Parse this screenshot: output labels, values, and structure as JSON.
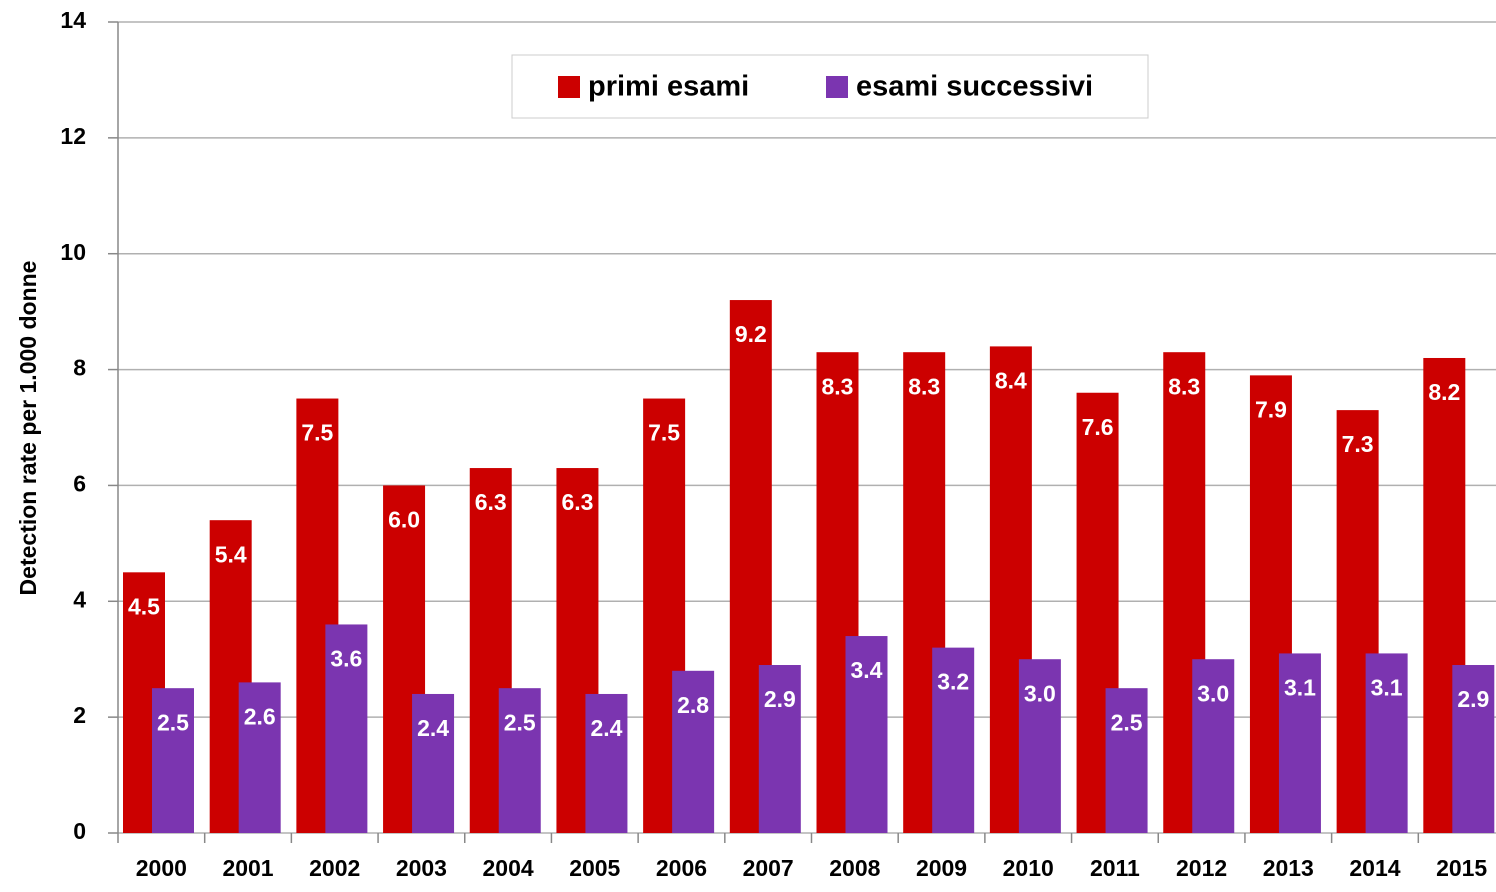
{
  "chart_data": {
    "type": "bar",
    "y_label": "Detection rate per 1.000 donne",
    "categories": [
      "2000",
      "2001",
      "2002",
      "2003",
      "2004",
      "2005",
      "2006",
      "2007",
      "2008",
      "2009",
      "2010",
      "2011",
      "2012",
      "2013",
      "2014",
      "2015"
    ],
    "series": [
      {
        "name": "primi esami",
        "color": "#cc0000",
        "values": [
          4.5,
          5.4,
          7.5,
          6.0,
          6.3,
          6.3,
          7.5,
          9.2,
          8.3,
          8.3,
          8.4,
          7.6,
          8.3,
          7.9,
          7.3,
          8.2
        ],
        "value_labels": [
          "4.5",
          "5.4",
          "7.5",
          "6.0",
          "6.3",
          "6.3",
          "7.5",
          "9.2",
          "8.3",
          "8.3",
          "8.4",
          "7.6",
          "8.3",
          "7.9",
          "7.3",
          "8.2"
        ]
      },
      {
        "name": "esami successivi",
        "color": "#7b35b0",
        "values": [
          2.5,
          2.6,
          3.6,
          2.4,
          2.5,
          2.4,
          2.8,
          2.9,
          3.4,
          3.2,
          3.0,
          2.5,
          3.0,
          3.1,
          3.1,
          2.9
        ],
        "value_labels": [
          "2.5",
          "2.6",
          "3.6",
          "2.4",
          "2.5",
          "2.4",
          "2.8",
          "2.9",
          "3.4",
          "3.2",
          "3.0",
          "2.5",
          "3.0",
          "3.1",
          "3.1",
          "2.9"
        ]
      }
    ],
    "ylim": [
      0,
      14
    ],
    "yticks": [
      0,
      2,
      4,
      6,
      8,
      10,
      12,
      14
    ],
    "grid": true,
    "legend": "top"
  }
}
